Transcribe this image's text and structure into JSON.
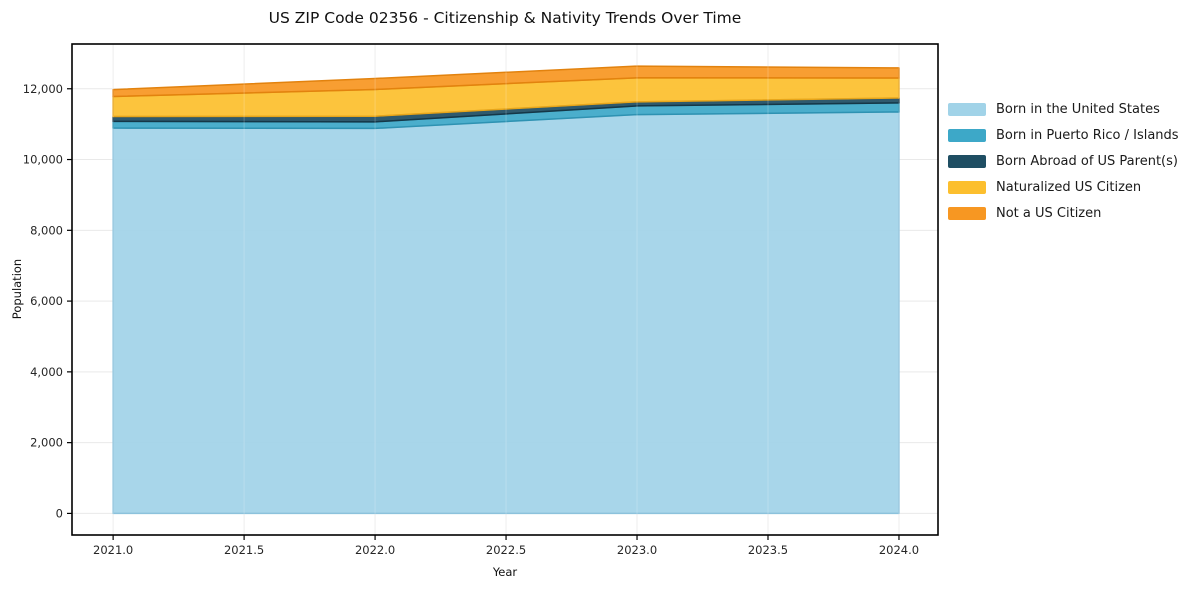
{
  "chart_data": {
    "type": "area",
    "stacked": true,
    "title": "US ZIP Code 02356 - Citizenship & Nativity Trends Over Time",
    "xlabel": "Year",
    "ylabel": "Population",
    "x": [
      2021,
      2022,
      2023,
      2024
    ],
    "series": [
      {
        "name": "Born in the United States",
        "color": "#A1D3E8",
        "edge": "#8CC2DC",
        "values": [
          10890,
          10880,
          11270,
          11345
        ]
      },
      {
        "name": "Born in Puerto Rico / Islands",
        "color": "#3DA8C8",
        "edge": "#2E92B2",
        "values": [
          190,
          185,
          245,
          255
        ]
      },
      {
        "name": "Born Abroad of US Parent(s)",
        "color": "#1F4E63",
        "edge": "#153747",
        "values": [
          135,
          160,
          115,
          140
        ]
      },
      {
        "name": "Naturalized US Citizen",
        "color": "#FCBF2E",
        "edge": "#E7A51A",
        "values": [
          565,
          755,
          680,
          565
        ]
      },
      {
        "name": "Not a US Citizen",
        "color": "#F79722",
        "edge": "#E2820E",
        "values": [
          195,
          310,
          330,
          285
        ]
      }
    ],
    "totals": [
      11975,
      12290,
      12640,
      12590
    ],
    "xticks": {
      "values": [
        2021.0,
        2021.5,
        2022.0,
        2022.5,
        2023.0,
        2023.5,
        2024.0
      ],
      "labels": [
        "2021.0",
        "2021.5",
        "2022.0",
        "2022.5",
        "2023.0",
        "2023.5",
        "2024.0"
      ]
    },
    "yticks": {
      "values": [
        0,
        2000,
        4000,
        6000,
        8000,
        10000,
        12000
      ],
      "labels": [
        "0",
        "2,000",
        "4,000",
        "6,000",
        "8,000",
        "10,000",
        "12,000"
      ]
    },
    "xlim": [
      2020.843,
      2024.149
    ],
    "ylim": [
      -610,
      13265
    ],
    "grid": true,
    "legend_position": "right",
    "colors": {
      "background": "#ffffff",
      "gridline": "#e9e9e9",
      "axes_frame": "#000000",
      "tick_text": "#262626"
    }
  }
}
